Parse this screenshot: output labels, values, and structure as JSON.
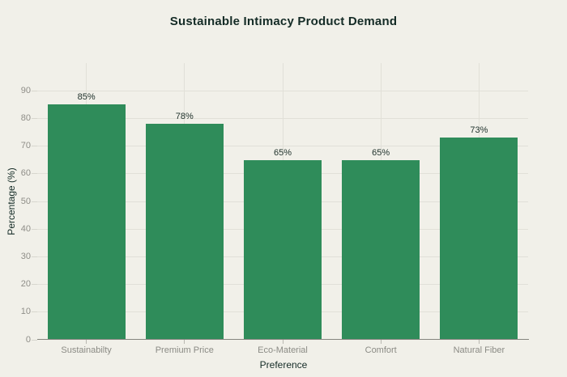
{
  "title": "Sustainable Intimacy Product Demand",
  "colors": {
    "background": "#f1f0e9",
    "bar": "#2f8c5a",
    "dark_text": "#142b26",
    "tick_text": "#8b8b85",
    "gridline": "#e1e0d8",
    "axis_line": "#85857f"
  },
  "chart_data": {
    "type": "bar",
    "title": "Sustainable Intimacy Product Demand",
    "categories": [
      "Sustainabilty",
      "Premium Price",
      "Eco-Material",
      "Comfort",
      "Natural Fiber"
    ],
    "values": [
      85,
      78,
      65,
      65,
      73
    ],
    "value_labels": [
      "85%",
      "78%",
      "65%",
      "65%",
      "73%"
    ],
    "xlabel": "Preference",
    "ylabel": "Percentage (%)",
    "ylim": [
      0,
      100
    ],
    "yticks": [
      0,
      10,
      20,
      30,
      40,
      50,
      60,
      70,
      80,
      90
    ],
    "grid": true,
    "legend_position": "none"
  }
}
